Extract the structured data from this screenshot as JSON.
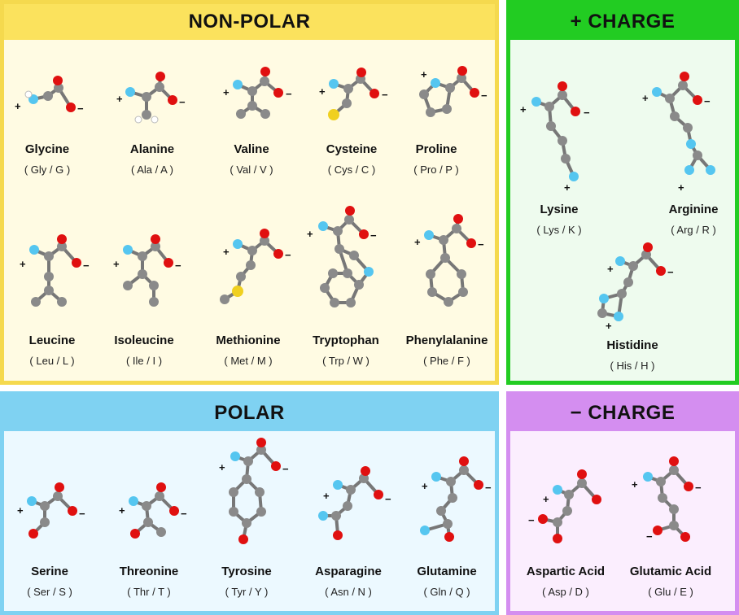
{
  "sections": {
    "nonpolar": {
      "title": "NON-POLAR"
    },
    "poscharge": {
      "title": "+ CHARGE"
    },
    "polar": {
      "title": "POLAR"
    },
    "negcharge": {
      "title": "− CHARGE"
    }
  },
  "amino_acids": {
    "glycine": {
      "name": "Glycine",
      "abbr": "( Gly / G )"
    },
    "alanine": {
      "name": "Alanine",
      "abbr": "( Ala / A )"
    },
    "valine": {
      "name": "Valine",
      "abbr": "( Val / V )"
    },
    "cysteine": {
      "name": "Cysteine",
      "abbr": "( Cys / C )"
    },
    "proline": {
      "name": "Proline",
      "abbr": "( Pro / P )"
    },
    "leucine": {
      "name": "Leucine",
      "abbr": "( Leu / L )"
    },
    "isoleucine": {
      "name": "Isoleucine",
      "abbr": "( Ile / I )"
    },
    "methionine": {
      "name": "Methionine",
      "abbr": "( Met / M )"
    },
    "tryptophan": {
      "name": "Tryptophan",
      "abbr": "( Trp / W )"
    },
    "phenylalanine": {
      "name": "Phenylalanine",
      "abbr": "( Phe / F )"
    },
    "lysine": {
      "name": "Lysine",
      "abbr": "( Lys / K )"
    },
    "arginine": {
      "name": "Arginine",
      "abbr": "( Arg / R )"
    },
    "histidine": {
      "name": "Histidine",
      "abbr": "( His / H )"
    },
    "serine": {
      "name": "Serine",
      "abbr": "( Ser / S )"
    },
    "threonine": {
      "name": "Threonine",
      "abbr": "( Thr / T )"
    },
    "tyrosine": {
      "name": "Tyrosine",
      "abbr": "( Tyr / Y )"
    },
    "asparagine": {
      "name": "Asparagine",
      "abbr": "( Asn / N )"
    },
    "glutamine": {
      "name": "Glutamine",
      "abbr": "( Gln / Q )"
    },
    "aspartic": {
      "name": "Aspartic Acid",
      "abbr": "( Asp / D )"
    },
    "glutamic": {
      "name": "Glutamic Acid",
      "abbr": "( Glu / E )"
    }
  },
  "charge_labels": {
    "plus": "+",
    "minus": "−"
  },
  "colors": {
    "nonpolar": "#fbe25d",
    "poscharge": "#22cc22",
    "polar": "#7fd2f2",
    "negcharge": "#d48ef0",
    "carbon": "#8a8a8a",
    "oxygen": "#e01010",
    "nitrogen": "#55c6f0",
    "sulfur": "#f0d020",
    "hydrogen": "#ffffff"
  }
}
